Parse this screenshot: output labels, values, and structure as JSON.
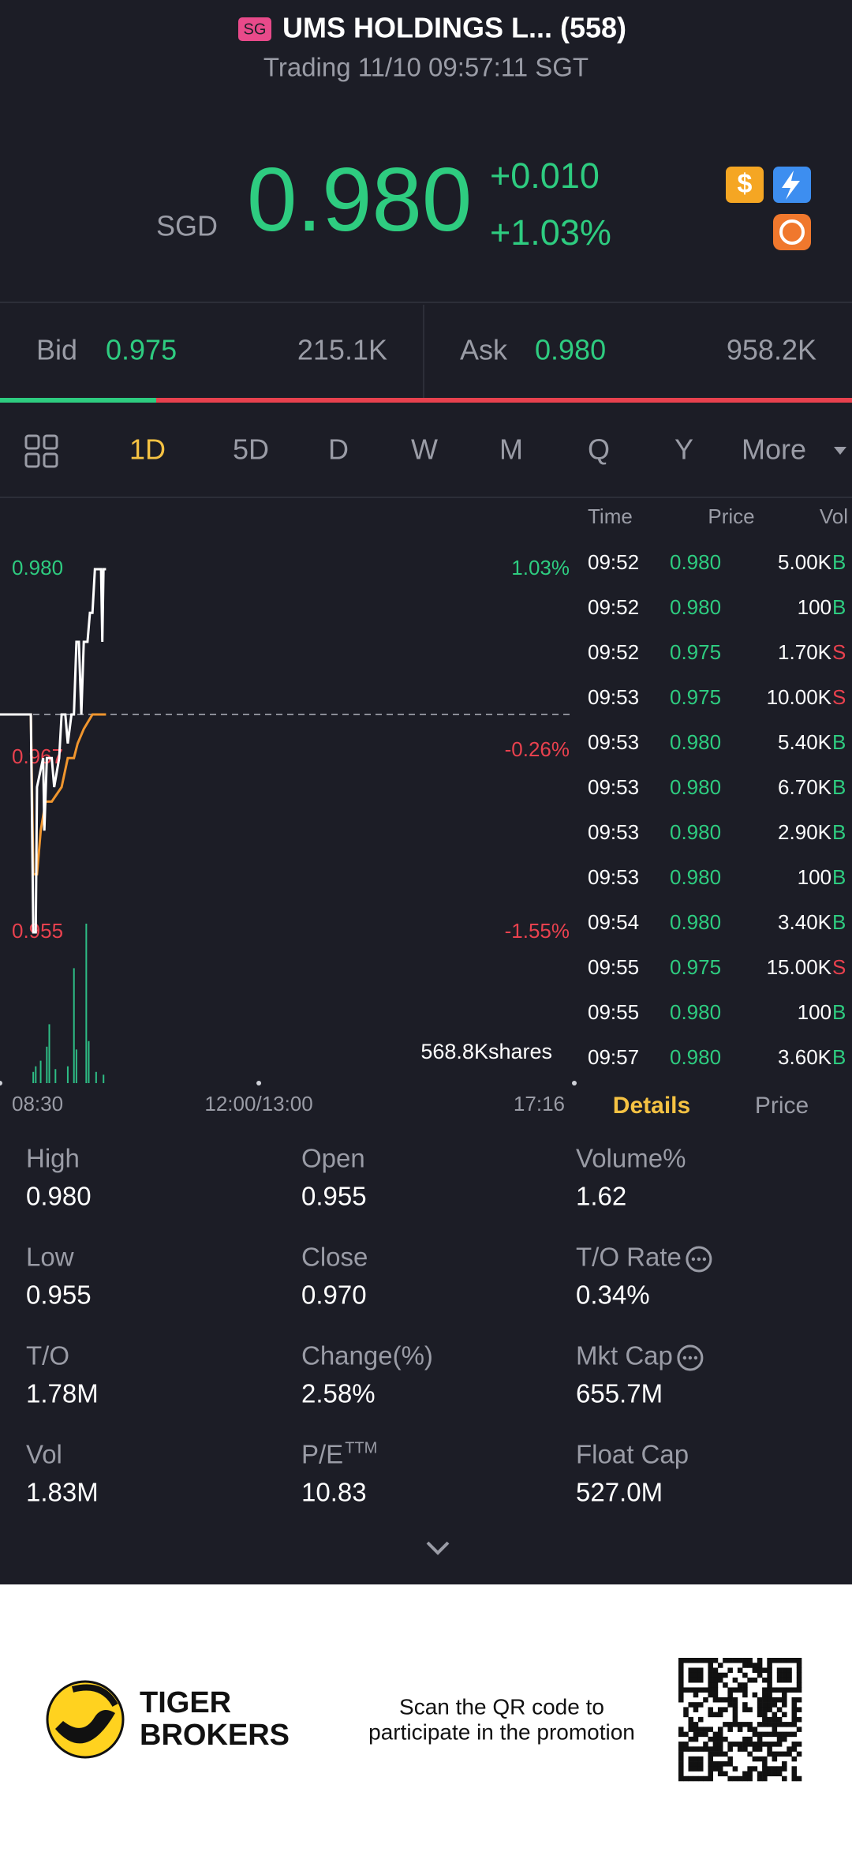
{
  "header": {
    "badge": "SG",
    "title": "UMS HOLDINGS L... (558)",
    "status": "Trading 11/10 09:57:11 SGT"
  },
  "quote": {
    "currency": "SGD",
    "price": "0.980",
    "change": "+0.010",
    "change_pct": "+1.03%"
  },
  "bid_ask": {
    "bid_label": "Bid",
    "bid": "0.975",
    "bid_size": {
      "value": 215.1,
      "label": "215.1K"
    },
    "ask_label": "Ask",
    "ask": "0.980",
    "ask_size": {
      "value": 958.2,
      "label": "958.2K"
    }
  },
  "periods": {
    "items": [
      "1D",
      "5D",
      "D",
      "W",
      "M",
      "Q",
      "Y",
      "More"
    ],
    "active": 0
  },
  "chart_data": {
    "type": "line",
    "xlim": [
      0,
      466
    ],
    "xticks": [
      {
        "value": 0,
        "label": "08:30"
      },
      {
        "value": 210,
        "label": "12:00/13:00"
      },
      {
        "value": 466,
        "label": "17:16"
      }
    ],
    "ylim": [
      0.955,
      0.98
    ],
    "yticks": [
      {
        "value": 0.98,
        "label": "0.980"
      },
      {
        "value": 0.967,
        "label": "0.967"
      },
      {
        "value": 0.955,
        "label": "0.955"
      }
    ],
    "y2lim": [
      -1.55,
      1.03
    ],
    "y2ticks": [
      {
        "value": 1.03,
        "label": "1.03%"
      },
      {
        "value": -0.26,
        "label": "-0.26%"
      },
      {
        "value": -1.55,
        "label": "-1.55%"
      }
    ],
    "prev_close": 0.97,
    "series": [
      {
        "color": "#ffffff",
        "x": [
          0,
          25,
          27,
          29,
          30,
          35,
          36,
          38,
          42,
          44,
          48,
          50,
          53,
          55,
          58,
          60,
          62,
          64,
          66,
          68,
          71,
          73,
          75,
          77,
          82,
          83,
          84,
          86
        ],
        "values": [
          0.97,
          0.97,
          0.955,
          0.955,
          0.965,
          0.967,
          0.962,
          0.967,
          0.967,
          0.965,
          0.967,
          0.97,
          0.97,
          0.968,
          0.97,
          0.97,
          0.975,
          0.975,
          0.97,
          0.975,
          0.975,
          0.977,
          0.977,
          0.98,
          0.98,
          0.975,
          0.98,
          0.98
        ]
      },
      {
        "color": "#f0962e",
        "x": [
          0,
          25,
          27,
          30,
          33,
          37,
          42,
          50,
          55,
          60,
          63,
          68,
          75,
          86
        ],
        "values": [
          0.97,
          0.97,
          0.959,
          0.959,
          0.962,
          0.964,
          0.964,
          0.965,
          0.967,
          0.967,
          0.968,
          0.969,
          0.97,
          0.97
        ]
      }
    ],
    "volume": {
      "color": "#2ebd85",
      "x": [
        27,
        29,
        33,
        38,
        40,
        45,
        55,
        60,
        62,
        70,
        72,
        78,
        84
      ],
      "values": [
        40,
        60,
        80,
        130,
        210,
        50,
        60,
        410,
        120,
        568.8,
        150,
        40,
        30
      ]
    },
    "volume_label": {
      "value": 568.8,
      "label": "568.8Kshares"
    }
  },
  "trades": {
    "columns": [
      "Time",
      "Price",
      "Vol"
    ],
    "rows": [
      [
        "09:52",
        "0.980",
        "5.00K",
        "B"
      ],
      [
        "09:52",
        "0.980",
        "100",
        "B"
      ],
      [
        "09:52",
        "0.975",
        "1.70K",
        "S"
      ],
      [
        "09:53",
        "0.975",
        "10.00K",
        "S"
      ],
      [
        "09:53",
        "0.980",
        "5.40K",
        "B"
      ],
      [
        "09:53",
        "0.980",
        "6.70K",
        "B"
      ],
      [
        "09:53",
        "0.980",
        "2.90K",
        "B"
      ],
      [
        "09:53",
        "0.980",
        "100",
        "B"
      ],
      [
        "09:54",
        "0.980",
        "3.40K",
        "B"
      ],
      [
        "09:55",
        "0.975",
        "15.00K",
        "S"
      ],
      [
        "09:55",
        "0.980",
        "100",
        "B"
      ],
      [
        "09:57",
        "0.980",
        "3.60K",
        "B"
      ]
    ]
  },
  "detail_tabs": {
    "items": [
      "Details",
      "Price"
    ],
    "active": 0
  },
  "stats": [
    {
      "label": "High",
      "value": "0.980"
    },
    {
      "label": "Open",
      "value": "0.955"
    },
    {
      "label": "Volume%",
      "value": "1.62"
    },
    {
      "label": "Low",
      "value": "0.955"
    },
    {
      "label": "Close",
      "value": "0.970"
    },
    {
      "label": "T/O Rate",
      "value": "0.34%",
      "info": true
    },
    {
      "label": "T/O",
      "value": "1.78M"
    },
    {
      "label": "Change(%)",
      "value": "2.58%"
    },
    {
      "label": "Mkt Cap",
      "value": "655.7M",
      "info": true
    },
    {
      "label": "Vol",
      "value": "1.83M"
    },
    {
      "label": "P/E",
      "sup": "TTM",
      "value": "10.83"
    },
    {
      "label": "Float Cap",
      "value": "527.0M"
    }
  ],
  "footer": {
    "brand_line1": "TIGER",
    "brand_line2": "BROKERS",
    "promo_line1": "Scan the QR code to",
    "promo_line2": "participate in the promotion"
  }
}
